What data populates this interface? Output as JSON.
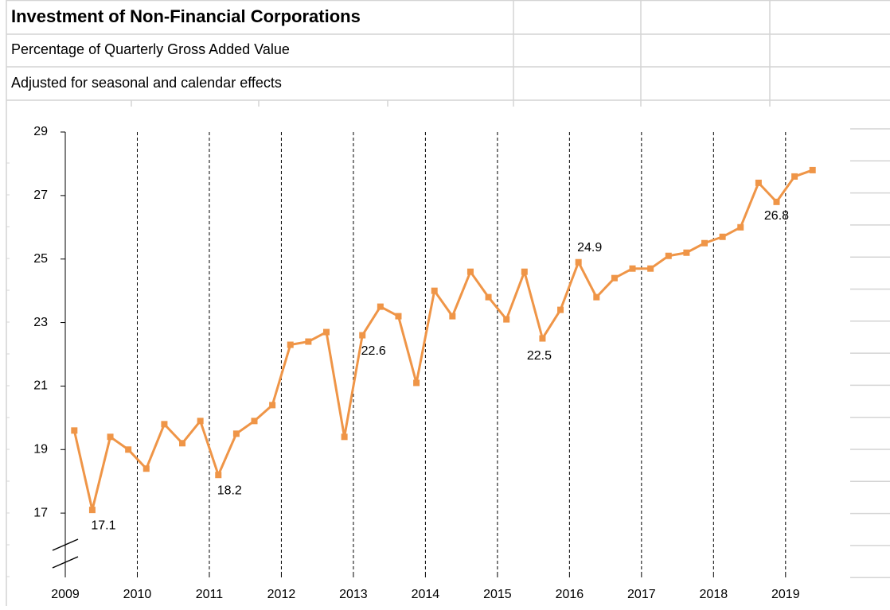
{
  "chart_data": {
    "type": "line",
    "title": "Investment of Non-Financial Corporations",
    "subtitle": "Percentage of Quarterly Gross Added Value",
    "note": "Adjusted for seasonal and calendar effects",
    "categories": [
      "2009",
      null,
      null,
      null,
      "2010",
      null,
      null,
      null,
      "2011",
      null,
      null,
      null,
      "2012",
      null,
      null,
      null,
      "2013",
      null,
      null,
      null,
      "2014",
      null,
      null,
      null,
      "2015",
      null,
      null,
      null,
      "2016",
      null,
      null,
      null,
      "2017",
      null,
      null,
      null,
      "2018",
      null,
      null,
      null,
      "2019",
      null
    ],
    "series": [
      {
        "name": "Investment",
        "color": "#ef9547",
        "values": [
          19.6,
          17.1,
          19.4,
          19.0,
          18.4,
          19.8,
          19.2,
          19.9,
          18.2,
          19.5,
          19.9,
          20.4,
          22.3,
          22.4,
          22.7,
          19.4,
          22.6,
          23.5,
          23.2,
          21.1,
          24.0,
          23.2,
          24.6,
          23.8,
          23.1,
          24.6,
          22.5,
          23.4,
          24.9,
          23.8,
          24.4,
          24.7,
          24.7,
          25.1,
          25.2,
          25.5,
          25.7,
          26.0,
          27.4,
          26.8,
          27.6,
          27.8
        ]
      }
    ],
    "labeled_points": [
      1,
      8,
      16,
      26,
      28,
      39
    ],
    "ylim": [
      15,
      29
    ],
    "yticks": [
      17,
      19,
      21,
      23,
      25,
      27,
      29
    ],
    "year_lines": true
  }
}
